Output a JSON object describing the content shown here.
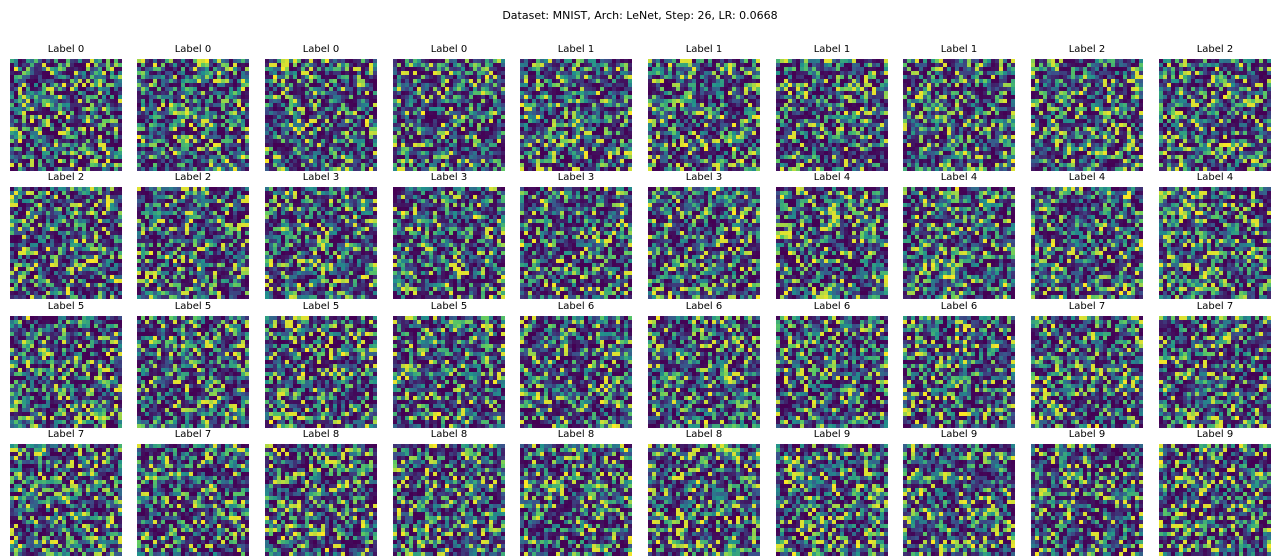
{
  "chart_data": {
    "type": "heatmap",
    "title": "Dataset: MNIST, Arch: LeNet, Step: 26, LR: 0.0668",
    "grid": {
      "rows": 4,
      "cols": 10
    },
    "image_size": [
      28,
      28
    ],
    "colormap": "viridis",
    "colormap_stops": [
      "#440154",
      "#3b528b",
      "#21918c",
      "#5ec962",
      "#fde725"
    ],
    "labels": [
      "Label 0",
      "Label 0",
      "Label 0",
      "Label 0",
      "Label 1",
      "Label 1",
      "Label 1",
      "Label 1",
      "Label 2",
      "Label 2",
      "Label 2",
      "Label 2",
      "Label 3",
      "Label 3",
      "Label 3",
      "Label 3",
      "Label 4",
      "Label 4",
      "Label 4",
      "Label 4",
      "Label 5",
      "Label 5",
      "Label 5",
      "Label 5",
      "Label 6",
      "Label 6",
      "Label 6",
      "Label 6",
      "Label 7",
      "Label 7",
      "Label 7",
      "Label 7",
      "Label 8",
      "Label 8",
      "Label 8",
      "Label 8",
      "Label 9",
      "Label 9",
      "Label 9",
      "Label 9"
    ]
  }
}
